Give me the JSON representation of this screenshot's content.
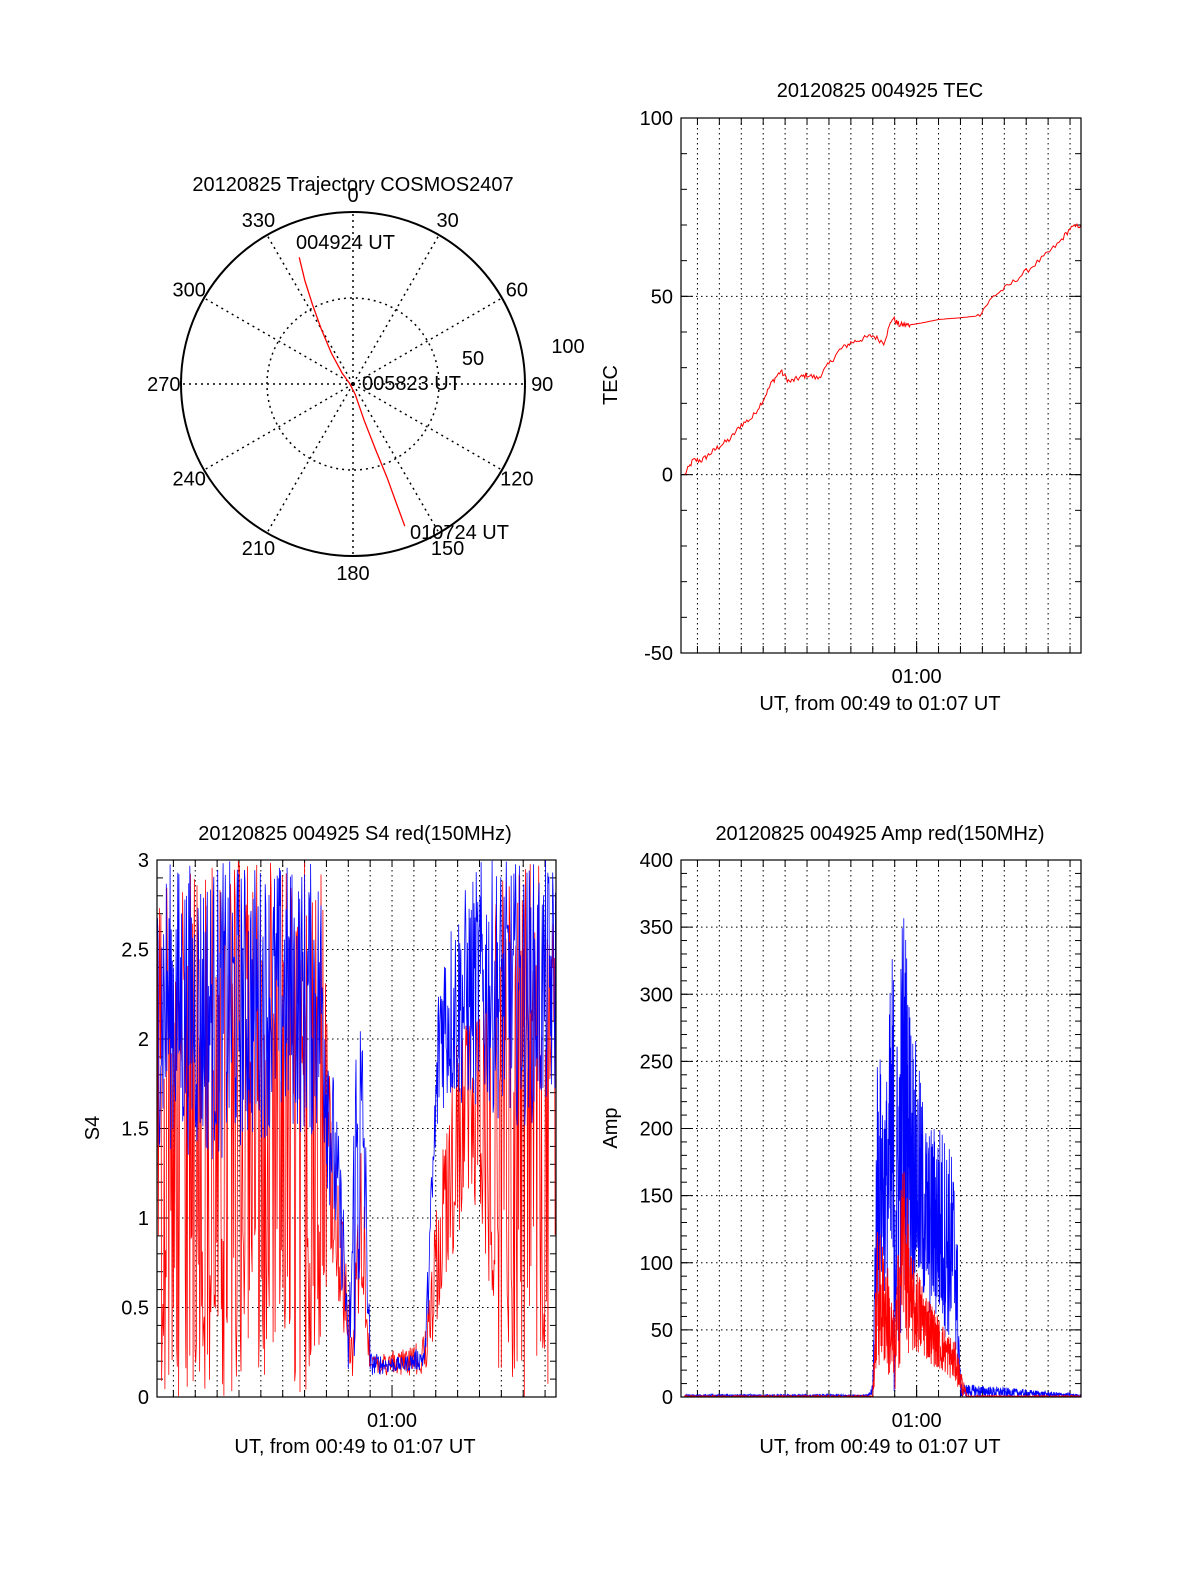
{
  "chart_data": [
    {
      "id": "trajectory",
      "type": "polar",
      "title": "20120825 Trajectory COSMOS2407",
      "azimuth_ticks": [
        0,
        30,
        60,
        90,
        120,
        150,
        180,
        210,
        240,
        270,
        300,
        330
      ],
      "radial_labels": [
        "50",
        "100"
      ],
      "rlim": [
        0,
        100
      ],
      "annotations": [
        {
          "text": "004924 UT",
          "az": 333,
          "r": 78
        },
        {
          "text": "005823 UT",
          "az": 90,
          "r": 2
        },
        {
          "text": "010724 UT",
          "az": 160,
          "r": 90
        }
      ],
      "track": [
        {
          "az": 337,
          "r": 80
        },
        {
          "az": 335,
          "r": 66
        },
        {
          "az": 333,
          "r": 52
        },
        {
          "az": 330,
          "r": 37
        },
        {
          "az": 325,
          "r": 22
        },
        {
          "az": 315,
          "r": 9
        },
        {
          "az": 280,
          "r": 2
        },
        {
          "az": 168,
          "r": 6
        },
        {
          "az": 163,
          "r": 22
        },
        {
          "az": 161,
          "r": 40
        },
        {
          "az": 160,
          "r": 58
        },
        {
          "az": 160,
          "r": 74
        },
        {
          "az": 160,
          "r": 88
        }
      ],
      "series_color": "#ff0000",
      "grid": true
    },
    {
      "id": "tec",
      "type": "line",
      "title": "20120825 004925 TEC",
      "ylabel": "TEC",
      "xlabel": "UT, from 00:49 to 01:07 UT",
      "ylim": [
        -50,
        100
      ],
      "yticks": [
        -50,
        0,
        50,
        100
      ],
      "xlim_min": [
        49.25,
        67.5
      ],
      "xticks": [
        {
          "label": "01:00",
          "min": 60
        }
      ],
      "grid": true,
      "series": [
        {
          "color": "#ff0000",
          "x": [
            49.42,
            49.8,
            50.2,
            50.6,
            51.0,
            51.5,
            52.0,
            52.5,
            53.0,
            53.4,
            53.8,
            54.2,
            54.6,
            55.0,
            55.5,
            56.0,
            56.5,
            57.0,
            57.5,
            58.0,
            58.5,
            58.9,
            59.2,
            59.5,
            59.7,
            60.2,
            61.0,
            62.0,
            62.8,
            63.5,
            64.2,
            65.0,
            65.8,
            66.5,
            67.0,
            67.5
          ],
          "y": [
            0,
            4,
            4,
            6,
            8,
            10,
            14,
            16,
            21,
            26,
            29,
            26,
            27,
            28,
            27,
            31,
            35,
            37,
            38,
            39,
            37,
            44,
            42,
            42,
            42,
            42.5,
            43.5,
            44,
            44.5,
            50,
            53,
            57,
            61,
            65,
            69,
            70
          ]
        }
      ]
    },
    {
      "id": "s4",
      "type": "line",
      "title": "20120825 004925 S4 red(150MHz)",
      "ylabel": "S4",
      "xlabel": "UT, from 00:49 to 01:07 UT",
      "ylim": [
        0,
        3
      ],
      "yticks": [
        0,
        0.5,
        1,
        1.5,
        2,
        2.5,
        3
      ],
      "ytick_labels": [
        "0",
        "0.5",
        "1",
        "1.5",
        "2",
        "2.5",
        "3"
      ],
      "xlim_min": [
        49.25,
        67.5
      ],
      "xticks": [
        {
          "label": "01:00",
          "min": 60
        }
      ],
      "grid": true,
      "series": [
        {
          "color": "#ff0000",
          "envelope": [
            {
              "x": 49.25,
              "lo": 0,
              "hi": 3
            },
            {
              "x": 54.0,
              "lo": 0,
              "hi": 3
            },
            {
              "x": 56.8,
              "lo": 0,
              "hi": 3
            },
            {
              "x": 57.2,
              "lo": 0.8,
              "hi": 1.6
            },
            {
              "x": 57.8,
              "lo": 0.35,
              "hi": 1.0
            },
            {
              "x": 58.2,
              "lo": 0.1,
              "hi": 0.3
            },
            {
              "x": 58.6,
              "lo": 0.6,
              "hi": 1.6
            },
            {
              "x": 59.0,
              "lo": 0.12,
              "hi": 0.22
            },
            {
              "x": 60.5,
              "lo": 0.12,
              "hi": 0.28
            },
            {
              "x": 61.5,
              "lo": 0.12,
              "hi": 0.35
            },
            {
              "x": 62.2,
              "lo": 0.45,
              "hi": 1.3
            },
            {
              "x": 63.0,
              "lo": 0.9,
              "hi": 2.0
            },
            {
              "x": 64.0,
              "lo": 1.1,
              "hi": 2.2
            },
            {
              "x": 65.0,
              "lo": 0,
              "hi": 3
            },
            {
              "x": 67.5,
              "lo": 0,
              "hi": 3
            }
          ]
        },
        {
          "color": "#0000ff",
          "envelope": [
            {
              "x": 49.25,
              "lo": 1.4,
              "hi": 3
            },
            {
              "x": 52.0,
              "lo": 1.3,
              "hi": 3
            },
            {
              "x": 55.0,
              "lo": 1.5,
              "hi": 3
            },
            {
              "x": 56.8,
              "lo": 1.4,
              "hi": 3
            },
            {
              "x": 57.2,
              "lo": 1.0,
              "hi": 2.0
            },
            {
              "x": 57.8,
              "lo": 0.5,
              "hi": 1.1
            },
            {
              "x": 58.0,
              "lo": 0.12,
              "hi": 0.3
            },
            {
              "x": 58.4,
              "lo": 0.15,
              "hi": 2.6
            },
            {
              "x": 58.7,
              "lo": 0.8,
              "hi": 2.1
            },
            {
              "x": 59.0,
              "lo": 0.12,
              "hi": 0.25
            },
            {
              "x": 60.5,
              "lo": 0.14,
              "hi": 0.22
            },
            {
              "x": 61.5,
              "lo": 0.15,
              "hi": 0.3
            },
            {
              "x": 62.2,
              "lo": 1.6,
              "hi": 2.6
            },
            {
              "x": 64.0,
              "lo": 1.6,
              "hi": 3
            },
            {
              "x": 66.0,
              "lo": 1.5,
              "hi": 3
            },
            {
              "x": 67.5,
              "lo": 1.6,
              "hi": 3
            }
          ]
        }
      ]
    },
    {
      "id": "amp",
      "type": "line",
      "title": "20120825 004925 Amp red(150MHz)",
      "ylabel": "Amp",
      "xlabel": "UT, from 00:49 to 01:07 UT",
      "ylim": [
        0,
        400
      ],
      "yticks": [
        0,
        50,
        100,
        150,
        200,
        250,
        300,
        350,
        400
      ],
      "xlim_min": [
        49.25,
        67.5
      ],
      "xticks": [
        {
          "label": "01:00",
          "min": 60
        }
      ],
      "grid": true,
      "series": [
        {
          "color": "#0000ff",
          "envelope": [
            {
              "x": 49.42,
              "lo": 0,
              "hi": 2
            },
            {
              "x": 57.8,
              "lo": 0,
              "hi": 2
            },
            {
              "x": 58.0,
              "lo": 0,
              "hi": 10
            },
            {
              "x": 58.2,
              "lo": 60,
              "hi": 270
            },
            {
              "x": 58.6,
              "lo": 80,
              "hi": 230
            },
            {
              "x": 58.9,
              "lo": 0,
              "hi": 350
            },
            {
              "x": 59.1,
              "lo": 0,
              "hi": 280
            },
            {
              "x": 59.4,
              "lo": 70,
              "hi": 385
            },
            {
              "x": 59.7,
              "lo": 80,
              "hi": 300
            },
            {
              "x": 60.0,
              "lo": 70,
              "hi": 260
            },
            {
              "x": 60.5,
              "lo": 60,
              "hi": 200
            },
            {
              "x": 61.0,
              "lo": 50,
              "hi": 210
            },
            {
              "x": 61.5,
              "lo": 40,
              "hi": 190
            },
            {
              "x": 61.8,
              "lo": 30,
              "hi": 170
            },
            {
              "x": 62.0,
              "lo": 0,
              "hi": 10
            },
            {
              "x": 67.5,
              "lo": 0,
              "hi": 2
            }
          ]
        },
        {
          "color": "#ff0000",
          "envelope": [
            {
              "x": 49.42,
              "lo": 0,
              "hi": 1
            },
            {
              "x": 58.0,
              "lo": 0,
              "hi": 1
            },
            {
              "x": 58.2,
              "lo": 20,
              "hi": 130
            },
            {
              "x": 58.6,
              "lo": 20,
              "hi": 110
            },
            {
              "x": 59.0,
              "lo": 0,
              "hi": 60
            },
            {
              "x": 59.4,
              "lo": 40,
              "hi": 200
            },
            {
              "x": 59.7,
              "lo": 30,
              "hi": 110
            },
            {
              "x": 60.2,
              "lo": 30,
              "hi": 90
            },
            {
              "x": 61.0,
              "lo": 20,
              "hi": 60
            },
            {
              "x": 61.8,
              "lo": 10,
              "hi": 40
            },
            {
              "x": 62.1,
              "lo": 0,
              "hi": 15
            },
            {
              "x": 62.3,
              "lo": 0,
              "hi": 1
            },
            {
              "x": 67.5,
              "lo": 0,
              "hi": 1
            }
          ]
        }
      ]
    }
  ]
}
